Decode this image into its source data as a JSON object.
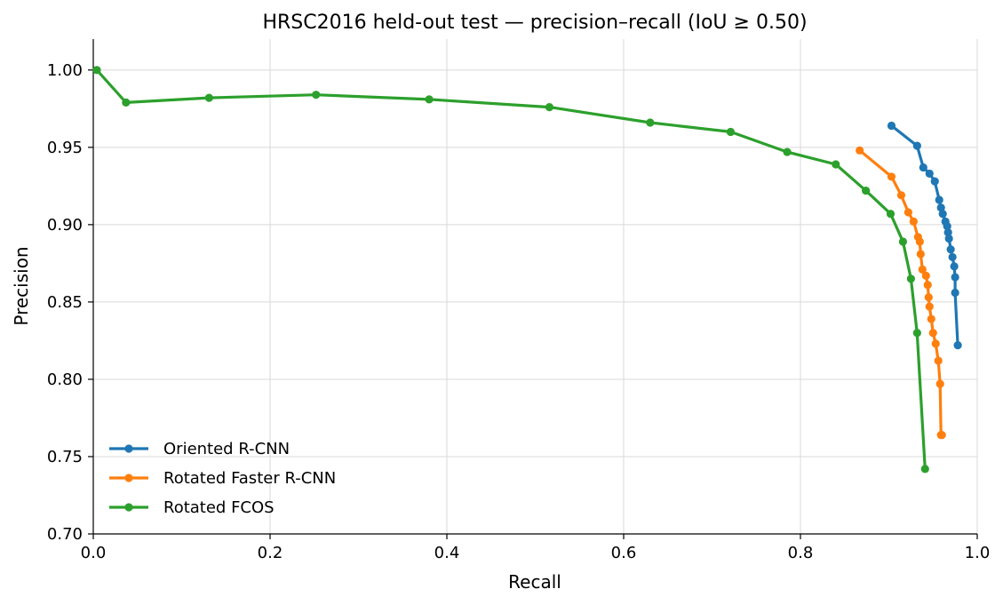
{
  "chart_data": {
    "type": "line",
    "title": "HRSC2016 held-out test — precision–recall (IoU ≥ 0.50)",
    "xlabel": "Recall",
    "ylabel": "Precision",
    "xlim": [
      0.0,
      1.0
    ],
    "ylim": [
      0.7,
      1.02
    ],
    "xticks": [
      0.0,
      0.2,
      0.4,
      0.6,
      0.8,
      1.0
    ],
    "xtick_labels": [
      "0.0",
      "0.2",
      "0.4",
      "0.6",
      "0.8",
      "1.0"
    ],
    "yticks": [
      0.7,
      0.75,
      0.8,
      0.85,
      0.9,
      0.95,
      1.0
    ],
    "ytick_labels": [
      "0.70",
      "0.75",
      "0.80",
      "0.85",
      "0.90",
      "0.95",
      "1.00"
    ],
    "grid": true,
    "legend_position": "lower-left",
    "series": [
      {
        "name": "Oriented R-CNN",
        "color": "#1f77b4",
        "x": [
          0.903,
          0.932,
          0.939,
          0.946,
          0.952,
          0.957,
          0.959,
          0.961,
          0.964,
          0.966,
          0.967,
          0.968,
          0.97,
          0.972,
          0.974,
          0.975,
          0.975,
          0.978
        ],
        "y": [
          0.964,
          0.951,
          0.937,
          0.933,
          0.928,
          0.916,
          0.911,
          0.907,
          0.902,
          0.899,
          0.895,
          0.891,
          0.884,
          0.879,
          0.873,
          0.866,
          0.856,
          0.822
        ]
      },
      {
        "name": "Rotated Faster R-CNN",
        "color": "#ff7f0e",
        "x": [
          0.867,
          0.903,
          0.914,
          0.922,
          0.928,
          0.933,
          0.935,
          0.936,
          0.938,
          0.942,
          0.944,
          0.945,
          0.946,
          0.948,
          0.95,
          0.953,
          0.956,
          0.958,
          0.959,
          0.96
        ],
        "y": [
          0.948,
          0.931,
          0.919,
          0.908,
          0.902,
          0.892,
          0.889,
          0.881,
          0.871,
          0.867,
          0.861,
          0.853,
          0.847,
          0.839,
          0.83,
          0.823,
          0.812,
          0.797,
          0.764,
          0.764
        ]
      },
      {
        "name": "Rotated FCOS",
        "color": "#2ca02c",
        "x": [
          0.004,
          0.037,
          0.131,
          0.252,
          0.38,
          0.516,
          0.63,
          0.721,
          0.785,
          0.84,
          0.874,
          0.902,
          0.916,
          0.925,
          0.932,
          0.941
        ],
        "y": [
          1.0,
          0.979,
          0.982,
          0.984,
          0.981,
          0.976,
          0.966,
          0.96,
          0.947,
          0.939,
          0.922,
          0.907,
          0.889,
          0.865,
          0.83,
          0.742
        ]
      }
    ]
  }
}
